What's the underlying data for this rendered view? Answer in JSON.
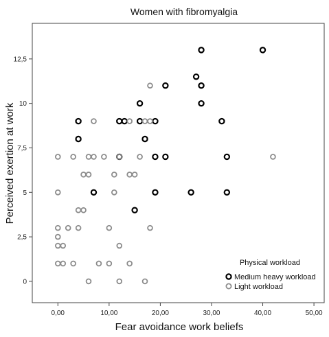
{
  "chart_data": {
    "type": "scatter",
    "title": "Women with fibromyalgia",
    "xlabel": "Fear avoidance work beliefs",
    "ylabel": "Perceived exertion at work",
    "xlim": [
      -5,
      52
    ],
    "ylim": [
      -1.2,
      14.5
    ],
    "x_ticks": [
      0,
      10,
      20,
      30,
      40,
      50
    ],
    "x_tick_labels": [
      "0,00",
      "10,00",
      "20,00",
      "30,00",
      "40,00",
      "50,00"
    ],
    "y_ticks": [
      0,
      2.5,
      5,
      7.5,
      10,
      12.5
    ],
    "y_tick_labels": [
      "0",
      "2,5",
      "5",
      "7,5",
      "10",
      "12,5"
    ],
    "grid": false,
    "legend": {
      "title": "Physical workload",
      "placement": "bottom-right",
      "entries": [
        "Medium heavy workload",
        "Light workload"
      ]
    },
    "series": [
      {
        "name": "Medium heavy workload",
        "color": "#000000",
        "points": [
          [
            28,
            13
          ],
          [
            40,
            13
          ],
          [
            27,
            11.5
          ],
          [
            21,
            11
          ],
          [
            28,
            11
          ],
          [
            16,
            10
          ],
          [
            28,
            10
          ],
          [
            4,
            9
          ],
          [
            12,
            9
          ],
          [
            13,
            9
          ],
          [
            16,
            9
          ],
          [
            19,
            9
          ],
          [
            32,
            9
          ],
          [
            4,
            8
          ],
          [
            17,
            8
          ],
          [
            12,
            7
          ],
          [
            19,
            7
          ],
          [
            21,
            7
          ],
          [
            33,
            7
          ],
          [
            7,
            5
          ],
          [
            19,
            5
          ],
          [
            26,
            5
          ],
          [
            33,
            5
          ],
          [
            15,
            4
          ]
        ]
      },
      {
        "name": "Light workload",
        "color": "#8c8c8c",
        "points": [
          [
            18,
            11
          ],
          [
            7,
            9
          ],
          [
            14,
            9
          ],
          [
            17,
            9
          ],
          [
            18,
            9
          ],
          [
            0,
            7
          ],
          [
            3,
            7
          ],
          [
            6,
            7
          ],
          [
            7,
            7
          ],
          [
            9,
            7
          ],
          [
            12,
            7
          ],
          [
            16,
            7
          ],
          [
            42,
            7
          ],
          [
            5,
            6
          ],
          [
            6,
            6
          ],
          [
            11,
            6
          ],
          [
            14,
            6
          ],
          [
            15,
            6
          ],
          [
            0,
            5
          ],
          [
            11,
            5
          ],
          [
            4,
            4
          ],
          [
            5,
            4
          ],
          [
            0,
            3
          ],
          [
            2,
            3
          ],
          [
            4,
            3
          ],
          [
            10,
            3
          ],
          [
            18,
            3
          ],
          [
            0,
            2.5
          ],
          [
            0,
            2
          ],
          [
            1,
            2
          ],
          [
            12,
            2
          ],
          [
            0,
            1
          ],
          [
            1,
            1
          ],
          [
            3,
            1
          ],
          [
            8,
            1
          ],
          [
            10,
            1
          ],
          [
            14,
            1
          ],
          [
            6,
            0
          ],
          [
            12,
            0
          ],
          [
            17,
            0
          ]
        ]
      }
    ]
  }
}
